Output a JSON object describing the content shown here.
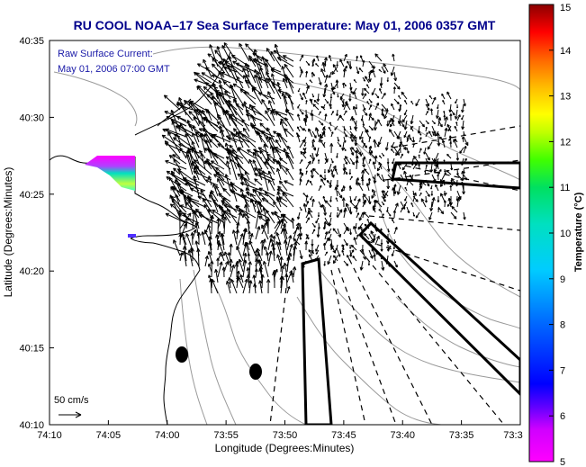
{
  "chart_data": {
    "type": "scatter",
    "title": "RU COOL  NOAA–17  Sea Surface Temperature:  May 01, 2006 0357 GMT",
    "annotation_lines": [
      "Raw Surface Current:",
      "May 01, 2006 07:00 GMT"
    ],
    "xlabel": "Longitude (Degrees:Minutes)",
    "ylabel": "Latitude (Degrees:Minutes)",
    "x_ticks": [
      "74:10",
      "74:05",
      "74:00",
      "73:55",
      "73:50",
      "73:45",
      "73:40",
      "73:35",
      "73:3"
    ],
    "y_ticks": [
      "40:35",
      "40:30",
      "40:25",
      "40:20",
      "40:15",
      "40:10"
    ],
    "xlim": [
      -74.1667,
      -73.5
    ],
    "ylim": [
      40.1667,
      40.5833
    ],
    "scale_arrow_label": "50 cm/s",
    "colorbar": {
      "label": "Temperature (°C)",
      "ticks": [
        "5",
        "6",
        "7",
        "8",
        "9",
        "10",
        "11",
        "12",
        "13",
        "14",
        "15"
      ],
      "range": [
        5,
        15
      ]
    },
    "grid": false,
    "series": []
  }
}
